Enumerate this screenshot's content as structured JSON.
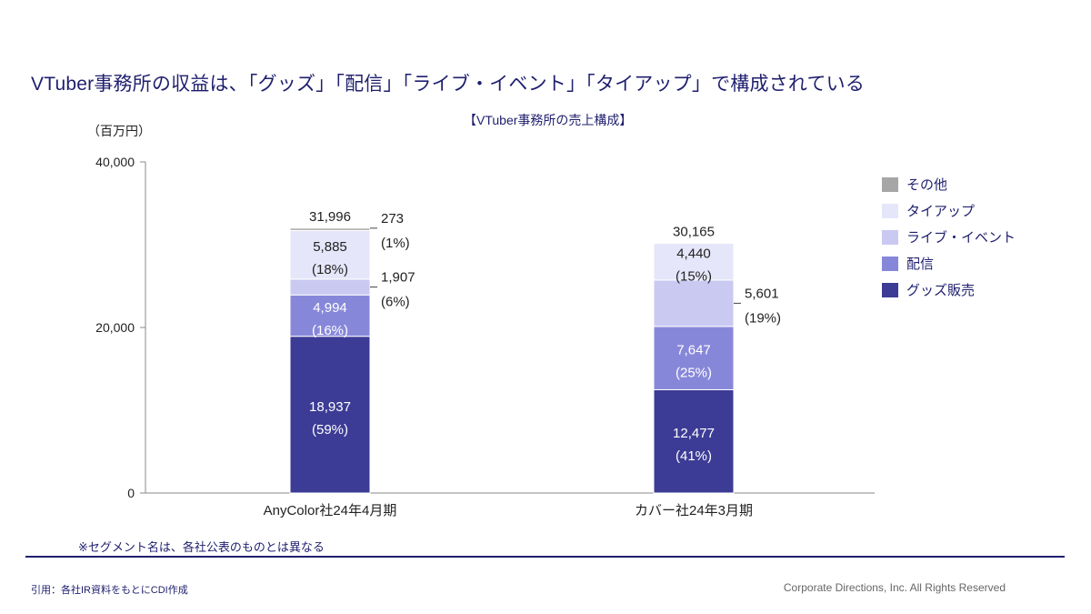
{
  "header": {
    "title": "VTuber事務所の収益は、「グッズ」「配信」「ライブ・イベント」「タイアップ」で構成されている",
    "chart_title": "【VTuber事務所の売上構成】",
    "unit": "（百万円）"
  },
  "colors": {
    "グッズ販売": "#3c3c96",
    "配信": "#8787da",
    "ライブ・イベント": "#c9c9f2",
    "タイアップ": "#e6e6fa",
    "その他": "#a6a6a6",
    "accent": "#1f1f6e"
  },
  "chart_data": {
    "type": "bar",
    "stacked": true,
    "title": "【VTuber事務所の売上構成】",
    "ylabel": "（百万円）",
    "xlabel": "",
    "ylim": [
      0,
      40000
    ],
    "y_ticks": [
      0,
      20000,
      40000
    ],
    "y_tick_labels": [
      "0",
      "20,000",
      "40,000"
    ],
    "categories": [
      "AnyColor社24年4月期",
      "カバー社24年3月期"
    ],
    "totals": [
      31996,
      30165
    ],
    "total_labels": [
      "31,996",
      "30,165"
    ],
    "series": [
      {
        "name": "グッズ販売",
        "values": [
          18937,
          12477
        ],
        "value_labels": [
          "18,937",
          "12,477"
        ],
        "pct_labels": [
          "(59%)",
          "(41%)"
        ]
      },
      {
        "name": "配信",
        "values": [
          4994,
          7647
        ],
        "value_labels": [
          "4,994",
          "7,647"
        ],
        "pct_labels": [
          "(16%)",
          "(25%)"
        ]
      },
      {
        "name": "ライブ・イベント",
        "values": [
          1907,
          5601
        ],
        "value_labels": [
          "1,907",
          "5,601"
        ],
        "pct_labels": [
          "(6%)",
          "(19%)"
        ]
      },
      {
        "name": "タイアップ",
        "values": [
          5885,
          4440
        ],
        "value_labels": [
          "5,885",
          "4,440"
        ],
        "pct_labels": [
          "(18%)",
          "(15%)"
        ]
      },
      {
        "name": "その他",
        "values": [
          273,
          0
        ],
        "value_labels": [
          "273",
          ""
        ],
        "pct_labels": [
          "(1%)",
          ""
        ]
      }
    ],
    "legend": [
      "その他",
      "タイアップ",
      "ライブ・イベント",
      "配信",
      "グッズ販売"
    ],
    "legend_position": "right"
  },
  "footer": {
    "note": "※セグメント名は、各社公表のものとは異なる",
    "source": "引用：各社IR資料をもとにCDI作成",
    "copyright": "Corporate Directions, Inc. All Rights Reserved"
  }
}
